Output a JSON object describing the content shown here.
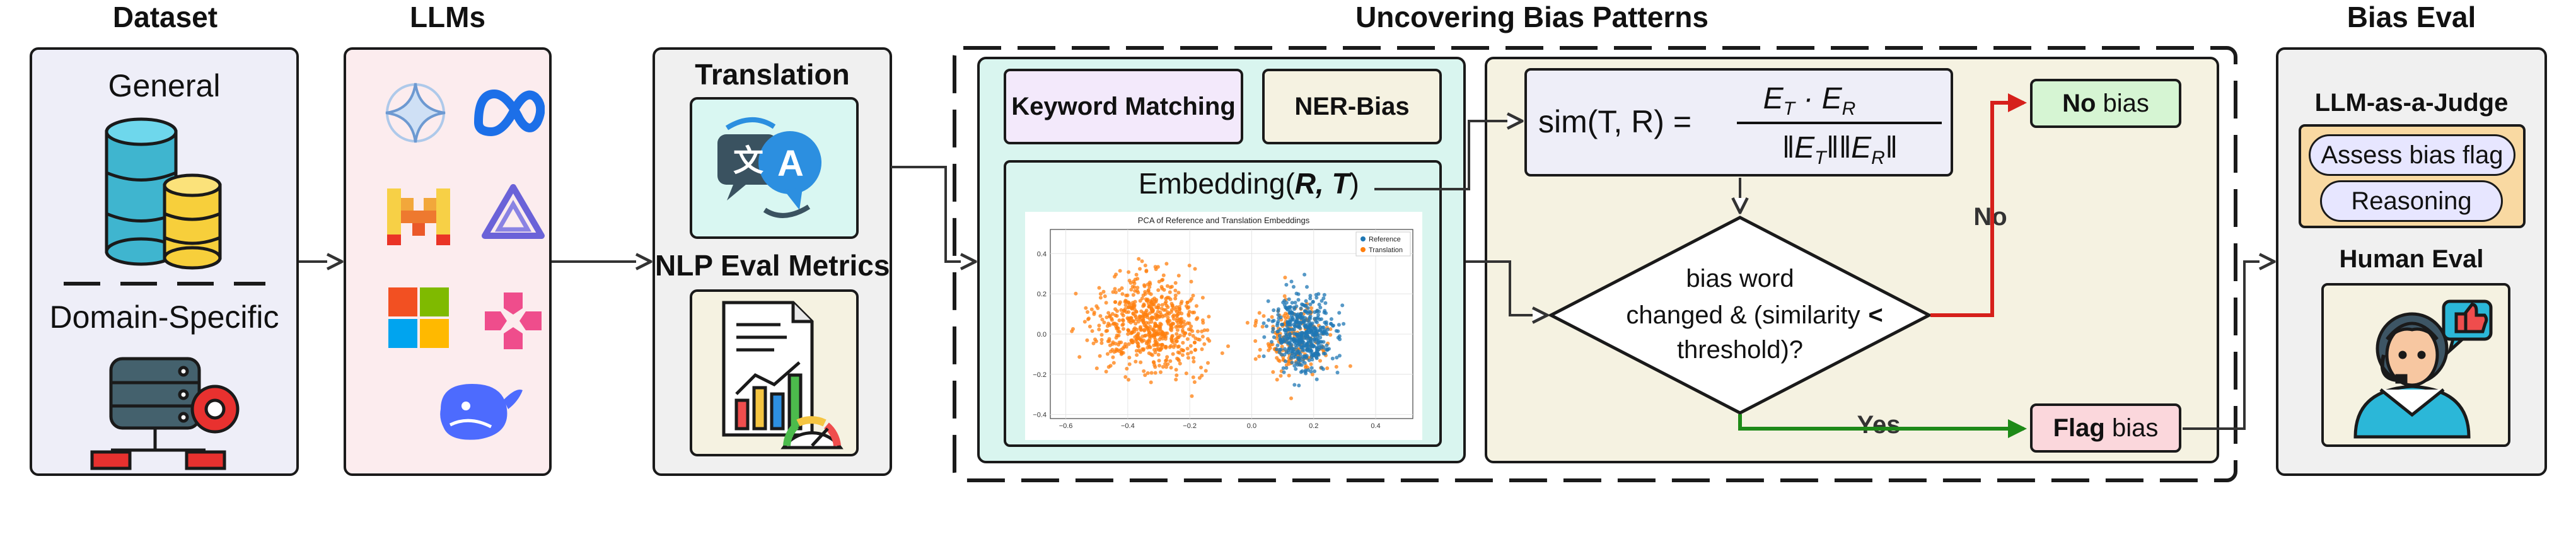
{
  "stages": {
    "dataset": "Dataset",
    "llms": "LLMs",
    "uncovering": "Uncovering Bias Patterns",
    "bias_eval": "Bias Eval"
  },
  "dataset": {
    "general": "General",
    "domain_specific": "Domain-Specific"
  },
  "translation": {
    "title": "Translation",
    "icon_glyph_left": "文",
    "icon_glyph_right": "A",
    "metrics_title": "NLP Eval Metrics"
  },
  "detection": {
    "keyword_matching": "Keyword Matching",
    "ner_bias": "NER-Bias",
    "embedding_label": "Embedding(",
    "embedding_args": "R, T",
    "embedding_close": ")"
  },
  "pca_plot": {
    "title": "PCA of Reference and Translation Embeddings",
    "legend": [
      "Reference",
      "Translation"
    ],
    "x_ticks": [
      "−0.6",
      "−0.4",
      "−0.2",
      "0.0",
      "0.2",
      "0.4"
    ],
    "y_ticks": [
      "0.4",
      "0.2",
      "0.0",
      "−0.2",
      "−0.4"
    ],
    "colors": {
      "reference": "#1f77b4",
      "translation": "#ff7f0e"
    }
  },
  "formula": {
    "lhs": "sim(T, R) =",
    "numerator": "E_T · E_R",
    "denominator": "‖E_T‖‖E_R‖"
  },
  "decision": {
    "line1": "bias word",
    "line2": "changed & (similarity",
    "lt": "<",
    "line3": "threshold)?",
    "no_label": "No",
    "yes_label": "Yes"
  },
  "outcomes": {
    "no_bias_bold": "No",
    "no_bias_rest": " bias",
    "flag_bias_bold": "Flag",
    "flag_bias_rest": " bias"
  },
  "bias_eval": {
    "llm_judge": "LLM-as-a-Judge",
    "assess": "Assess bias flag",
    "reasoning": "Reasoning",
    "human_eval": "Human Eval"
  },
  "colors": {
    "dataset_bg": "#eeeef8",
    "llms_bg": "#fcecee",
    "translation_bg": "#f0f0f0",
    "translation_icon_bg": "#d9f7f2",
    "metrics_bg": "#f5f2e1",
    "detection_bg": "#d9f5ef",
    "keyword_bg": "#f3e9fb",
    "ner_bg": "#f5f2e1",
    "flow_bg": "#f5f2e1",
    "formula_bg": "#eeeef8",
    "no_bias_bg": "#d6f5d3",
    "flag_bias_bg": "#fbd7dc",
    "no_arrow": "#d6201b",
    "yes_arrow": "#1e8a18"
  }
}
